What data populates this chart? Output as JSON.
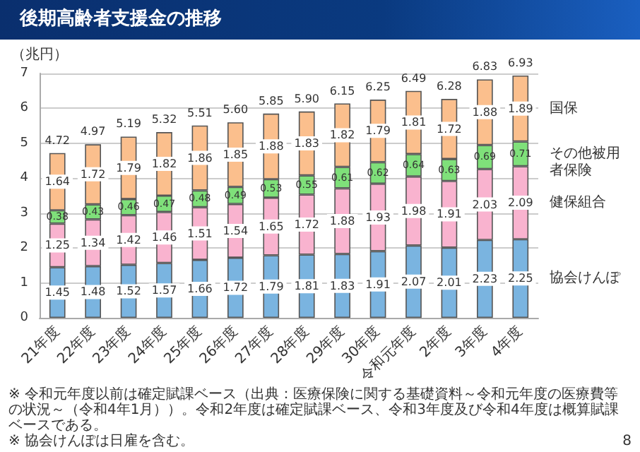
{
  "chart_data": {
    "type": "bar",
    "title": "後期高齢者支援金の推移",
    "ylabel": "（兆円）",
    "categories": [
      "21年度",
      "22年度",
      "23年度",
      "24年度",
      "25年度",
      "26年度",
      "27年度",
      "28年度",
      "29年度",
      "30年度",
      "令和元年度",
      "2年度",
      "3年度",
      "4年度"
    ],
    "series": [
      {
        "name": "協会けんぽ",
        "color": "#7ab4e0",
        "values": [
          1.45,
          1.48,
          1.52,
          1.57,
          1.66,
          1.72,
          1.79,
          1.81,
          1.83,
          1.91,
          2.07,
          2.01,
          2.23,
          2.25
        ]
      },
      {
        "name": "健保組合",
        "color": "#f9b3cf",
        "values": [
          1.25,
          1.34,
          1.42,
          1.46,
          1.51,
          1.54,
          1.65,
          1.72,
          1.88,
          1.93,
          1.98,
          1.91,
          2.03,
          2.09
        ]
      },
      {
        "name": "その他被用者保険",
        "color": "#7fe07a",
        "values": [
          0.38,
          0.43,
          0.46,
          0.47,
          0.48,
          0.49,
          0.53,
          0.55,
          0.61,
          0.62,
          0.64,
          0.63,
          0.69,
          0.71
        ]
      },
      {
        "name": "国保",
        "color": "#fbbf8d",
        "values": [
          1.64,
          1.72,
          1.79,
          1.82,
          1.86,
          1.85,
          1.88,
          1.83,
          1.82,
          1.79,
          1.81,
          1.72,
          1.88,
          1.89
        ]
      }
    ],
    "stacked": true,
    "data_labels": true,
    "totals": [
      "4.72",
      "4.97",
      "5.19",
      "5.32",
      "5.51",
      "5.60",
      "5.85",
      "5.90",
      "6.15",
      "6.25",
      "6.49",
      "6.28",
      "6.83",
      "6.93"
    ],
    "ylim": [
      0,
      7
    ],
    "yticks": [
      0,
      1,
      2,
      3,
      4,
      5,
      6,
      7
    ],
    "grid": "y",
    "legend": false,
    "annotations": [
      "※ 令和元年度以前は確定賦課ベース（出典：医療保険に関する基礎資料～令和元年度の医療費等の状況～（令和4年1月））。令和2年度は確定賦課ベース、令和3年度及び令和4年度は概算賦課ベースである。",
      "※ 協会けんぽは日雇を含む。",
      "8"
    ]
  }
}
